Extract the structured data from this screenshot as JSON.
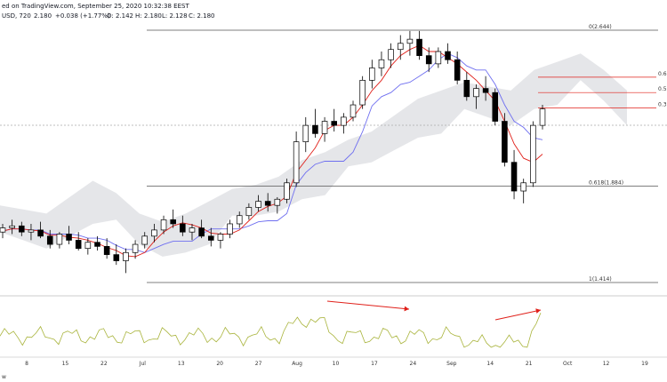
{
  "header": {
    "line1": "ed on TradingView.com, September 25, 2020 10:32:38 EEST",
    "line2_prefix": "USD, 720",
    "line2_value": "2.180",
    "line2_change": "+0.038 (+1.77%)",
    "ohlc": [
      "O: 2.142",
      "H: 2.180",
      "L: 2.128",
      "C: 2.180"
    ],
    "watermark": "w"
  },
  "colors": {
    "up": "#ffffff",
    "down": "#000000",
    "tenkan": "#e0201a",
    "kijun": "#6f6ff0",
    "cloud": "#dcdde2",
    "oscillator": "#a9b43c",
    "arrow": "#e0201a",
    "fib_black": "#555555",
    "fib_red": "#e0201a"
  },
  "chart_data": {
    "type": "candlestick",
    "fib_levels": [
      {
        "label": "0(2.644)",
        "value": 2.644
      },
      {
        "label": "0.618(1.884)",
        "value": 1.884
      },
      {
        "label": "1(1.414)",
        "value": 1.414
      },
      {
        "label": "0.6",
        "value": 2.415
      },
      {
        "label": "0.5",
        "value": 2.34
      },
      {
        "label": "0.3",
        "value": 2.265
      }
    ],
    "x_ticks": [
      "8",
      "15",
      "22",
      "Jul",
      "13",
      "20",
      "27",
      "Aug",
      "10",
      "17",
      "24",
      "Sep",
      "14",
      "21",
      "Oct",
      "12",
      "19"
    ],
    "y_range": [
      1.3,
      2.75
    ],
    "candles": [
      [
        1.66,
        1.7,
        1.63,
        1.68
      ],
      [
        1.68,
        1.72,
        1.65,
        1.69
      ],
      [
        1.69,
        1.71,
        1.64,
        1.66
      ],
      [
        1.66,
        1.7,
        1.62,
        1.67
      ],
      [
        1.67,
        1.71,
        1.63,
        1.64
      ],
      [
        1.64,
        1.67,
        1.58,
        1.6
      ],
      [
        1.6,
        1.66,
        1.58,
        1.65
      ],
      [
        1.65,
        1.69,
        1.6,
        1.62
      ],
      [
        1.62,
        1.66,
        1.57,
        1.58
      ],
      [
        1.58,
        1.63,
        1.55,
        1.61
      ],
      [
        1.61,
        1.64,
        1.57,
        1.59
      ],
      [
        1.59,
        1.63,
        1.53,
        1.55
      ],
      [
        1.55,
        1.6,
        1.5,
        1.52
      ],
      [
        1.52,
        1.58,
        1.46,
        1.56
      ],
      [
        1.56,
        1.62,
        1.53,
        1.6
      ],
      [
        1.6,
        1.66,
        1.58,
        1.64
      ],
      [
        1.64,
        1.7,
        1.61,
        1.67
      ],
      [
        1.67,
        1.74,
        1.65,
        1.72
      ],
      [
        1.72,
        1.77,
        1.68,
        1.7
      ],
      [
        1.7,
        1.74,
        1.64,
        1.66
      ],
      [
        1.66,
        1.7,
        1.62,
        1.68
      ],
      [
        1.68,
        1.72,
        1.63,
        1.64
      ],
      [
        1.64,
        1.68,
        1.59,
        1.62
      ],
      [
        1.62,
        1.66,
        1.58,
        1.65
      ],
      [
        1.65,
        1.72,
        1.63,
        1.7
      ],
      [
        1.7,
        1.76,
        1.68,
        1.74
      ],
      [
        1.74,
        1.8,
        1.72,
        1.78
      ],
      [
        1.78,
        1.84,
        1.76,
        1.81
      ],
      [
        1.81,
        1.85,
        1.76,
        1.79
      ],
      [
        1.79,
        1.83,
        1.75,
        1.82
      ],
      [
        1.82,
        1.92,
        1.8,
        1.9
      ],
      [
        1.9,
        2.15,
        1.88,
        2.1
      ],
      [
        2.1,
        2.22,
        2.05,
        2.18
      ],
      [
        2.18,
        2.26,
        2.12,
        2.14
      ],
      [
        2.14,
        2.22,
        2.1,
        2.2
      ],
      [
        2.2,
        2.26,
        2.15,
        2.18
      ],
      [
        2.18,
        2.24,
        2.14,
        2.22
      ],
      [
        2.22,
        2.3,
        2.2,
        2.28
      ],
      [
        2.28,
        2.42,
        2.26,
        2.4
      ],
      [
        2.4,
        2.5,
        2.36,
        2.46
      ],
      [
        2.46,
        2.54,
        2.42,
        2.5
      ],
      [
        2.5,
        2.58,
        2.46,
        2.55
      ],
      [
        2.55,
        2.62,
        2.5,
        2.58
      ],
      [
        2.58,
        2.64,
        2.52,
        2.6
      ],
      [
        2.6,
        2.64,
        2.5,
        2.52
      ],
      [
        2.52,
        2.56,
        2.44,
        2.48
      ],
      [
        2.48,
        2.56,
        2.46,
        2.54
      ],
      [
        2.54,
        2.58,
        2.48,
        2.5
      ],
      [
        2.5,
        2.54,
        2.38,
        2.4
      ],
      [
        2.4,
        2.44,
        2.3,
        2.32
      ],
      [
        2.32,
        2.38,
        2.26,
        2.36
      ],
      [
        2.36,
        2.42,
        2.3,
        2.34
      ],
      [
        2.34,
        2.36,
        2.18,
        2.2
      ],
      [
        2.2,
        2.24,
        1.98,
        2.0
      ],
      [
        2.0,
        2.06,
        1.82,
        1.86
      ],
      [
        1.86,
        1.92,
        1.8,
        1.9
      ],
      [
        1.9,
        2.2,
        1.88,
        2.18
      ],
      [
        2.18,
        2.28,
        2.16,
        2.26
      ]
    ]
  }
}
